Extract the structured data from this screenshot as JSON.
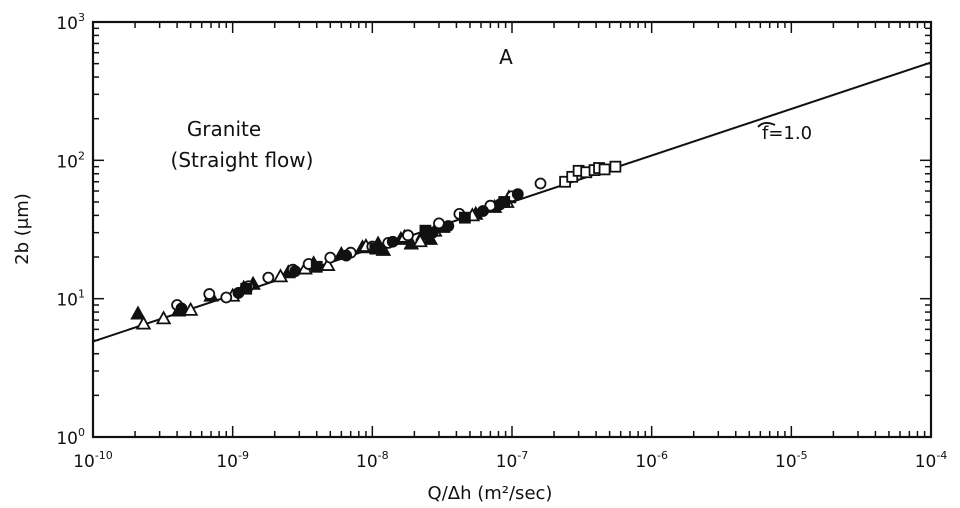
{
  "chart_data": {
    "type": "scatter",
    "panel_label": "A",
    "annotation": "Granite",
    "annotation_line2": "(Straight flow)",
    "fit_label": "f=1.0",
    "xlabel": "Q/Δh (m²/sec)",
    "ylabel": "2b (μm)",
    "x_scale": "log",
    "y_scale": "log",
    "xlim": [
      1e-10,
      0.0001
    ],
    "ylim": [
      1,
      1000
    ],
    "x_ticks": [
      {
        "base": "10",
        "exp": "-10",
        "value": 1e-10
      },
      {
        "base": "10",
        "exp": "-9",
        "value": 1e-09
      },
      {
        "base": "10",
        "exp": "-8",
        "value": 1e-08
      },
      {
        "base": "10",
        "exp": "-7",
        "value": 1e-07
      },
      {
        "base": "10",
        "exp": "-6",
        "value": 1e-06
      },
      {
        "base": "10",
        "exp": "-5",
        "value": 1e-05
      },
      {
        "base": "10",
        "exp": "-4",
        "value": 0.0001
      }
    ],
    "y_ticks": [
      {
        "base": "10",
        "exp": "0",
        "value": 1
      },
      {
        "base": "10",
        "exp": "1",
        "value": 10
      },
      {
        "base": "10",
        "exp": "2",
        "value": 100
      },
      {
        "base": "10",
        "exp": "3",
        "value": 1000
      }
    ],
    "grid": false,
    "fit_line": {
      "x": [
        1e-10,
        0.0001
      ],
      "y": [
        4.9,
        510
      ]
    },
    "series": [
      {
        "marker": "filled-triangle",
        "points": [
          [
            2.1e-10,
            7.8
          ],
          [
            4.1e-10,
            8.2
          ],
          [
            7e-10,
            10.5
          ],
          [
            1.2e-09,
            12
          ],
          [
            1.4e-09,
            12.8
          ],
          [
            2.5e-09,
            15.5
          ],
          [
            3.8e-09,
            18
          ],
          [
            6e-09,
            21
          ],
          [
            8.5e-09,
            23.5
          ],
          [
            1.1e-08,
            25
          ],
          [
            1.2e-08,
            22.5
          ],
          [
            1.6e-08,
            27
          ],
          [
            1.9e-08,
            25
          ],
          [
            2.3e-08,
            29
          ],
          [
            2.6e-08,
            27
          ],
          [
            3.2e-08,
            33
          ],
          [
            5.5e-08,
            41
          ],
          [
            7.5e-08,
            46
          ],
          [
            9.5e-08,
            54
          ]
        ]
      },
      {
        "marker": "open-triangle",
        "points": [
          [
            2.3e-10,
            6.6
          ],
          [
            3.2e-10,
            7.2
          ],
          [
            5e-10,
            8.3
          ],
          [
            1e-09,
            10.5
          ],
          [
            2.2e-09,
            14.5
          ],
          [
            3.3e-09,
            16.5
          ],
          [
            4.8e-09,
            17.5
          ],
          [
            9e-09,
            24
          ],
          [
            1.7e-08,
            28
          ],
          [
            2.2e-08,
            26
          ],
          [
            2.8e-08,
            31
          ],
          [
            5.2e-08,
            40
          ],
          [
            9.2e-08,
            50
          ]
        ]
      },
      {
        "marker": "open-circle",
        "points": [
          [
            4e-10,
            9
          ],
          [
            6.8e-10,
            10.8
          ],
          [
            9e-10,
            10.2
          ],
          [
            1.3e-09,
            12.3
          ],
          [
            1.8e-09,
            14.2
          ],
          [
            2.7e-09,
            16.2
          ],
          [
            3.5e-09,
            17.8
          ],
          [
            5e-09,
            19.8
          ],
          [
            7e-09,
            21.5
          ],
          [
            1e-08,
            23.8
          ],
          [
            1.3e-08,
            25.3
          ],
          [
            1.8e-08,
            28.7
          ],
          [
            3e-08,
            35
          ],
          [
            4.2e-08,
            41
          ],
          [
            7e-08,
            47
          ],
          [
            1e-07,
            55
          ],
          [
            1.6e-07,
            68
          ]
        ]
      },
      {
        "marker": "filled-circle",
        "points": [
          [
            4.3e-10,
            8.5
          ],
          [
            1.1e-09,
            11
          ],
          [
            2.8e-09,
            15.8
          ],
          [
            6.5e-09,
            20.5
          ],
          [
            1.4e-08,
            25.8
          ],
          [
            2.7e-08,
            30
          ],
          [
            3.5e-08,
            33.5
          ],
          [
            6.2e-08,
            43
          ],
          [
            8.2e-08,
            48
          ],
          [
            1.1e-07,
            57
          ]
        ]
      },
      {
        "marker": "filled-square",
        "points": [
          [
            1.25e-09,
            11.8
          ],
          [
            4e-09,
            17
          ],
          [
            1.05e-08,
            23
          ],
          [
            2.4e-08,
            31
          ],
          [
            4.6e-08,
            38.5
          ],
          [
            8.8e-08,
            50
          ]
        ]
      },
      {
        "marker": "open-square",
        "points": [
          [
            2.4e-07,
            70
          ],
          [
            2.7e-07,
            76
          ],
          [
            3e-07,
            84
          ],
          [
            3.4e-07,
            82
          ],
          [
            3.9e-07,
            85
          ],
          [
            4.2e-07,
            88
          ],
          [
            4.6e-07,
            86
          ],
          [
            5.5e-07,
            90
          ]
        ]
      }
    ]
  }
}
